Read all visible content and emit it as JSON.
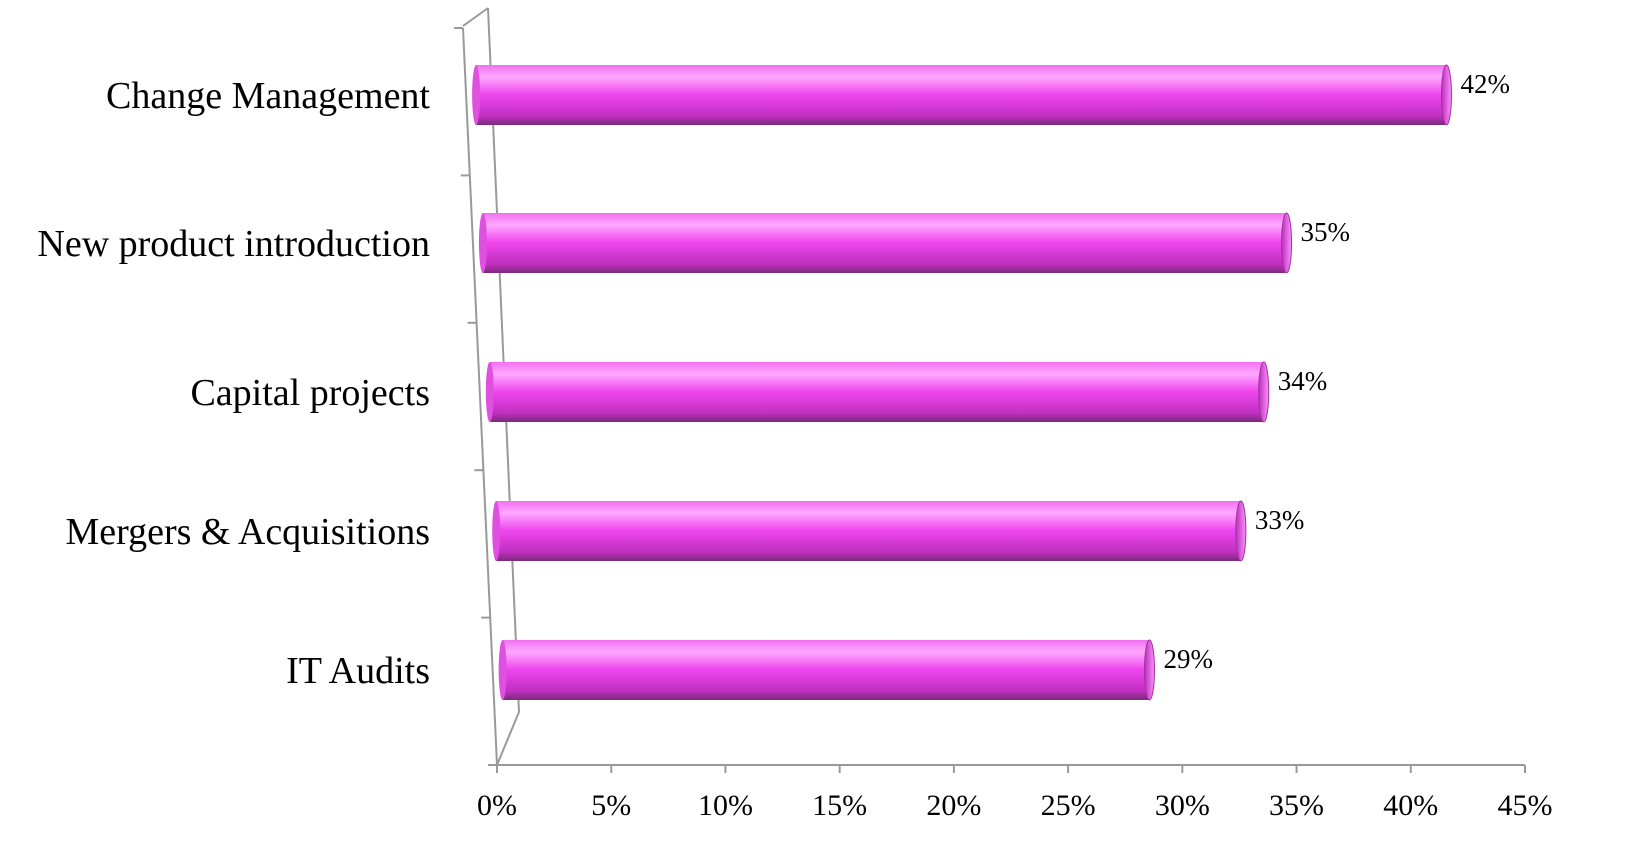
{
  "chart_data": {
    "type": "bar",
    "orientation": "horizontal",
    "style": "3d-cylinder",
    "categories": [
      "Change Management",
      "New product introduction",
      "Capital projects",
      "Mergers & Acquisitions",
      "IT Audits"
    ],
    "values": [
      42,
      35,
      34,
      33,
      29
    ],
    "data_labels": [
      "42%",
      "35%",
      "34%",
      "33%",
      "29%"
    ],
    "xlim": [
      0,
      45
    ],
    "xticks": [
      0,
      5,
      10,
      15,
      20,
      25,
      30,
      35,
      40,
      45
    ],
    "xtick_labels": [
      "0%",
      "5%",
      "10%",
      "15%",
      "20%",
      "25%",
      "30%",
      "35%",
      "40%",
      "45%"
    ],
    "title": "",
    "xlabel": "",
    "ylabel": "",
    "grid": false,
    "legend": "none",
    "colors": {
      "bar": "#ee44ee",
      "bar_highlight": "#ffa8ff",
      "bar_shadow": "#7a2a7a",
      "axis": "#999999"
    }
  }
}
